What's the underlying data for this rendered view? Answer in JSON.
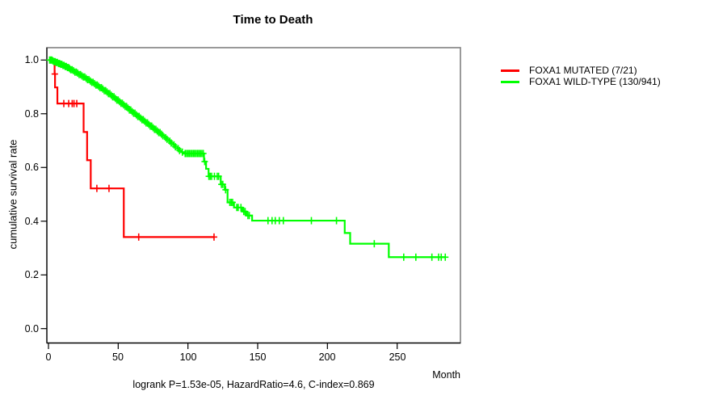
{
  "title": "Time to Death",
  "footer": "logrank P=1.53e-05, HazardRatio=4.6, C-index=0.869",
  "axes": {
    "x": {
      "label": "Month",
      "ticks": [
        "0",
        "50",
        "100",
        "150",
        "200",
        "250"
      ]
    },
    "y": {
      "label": "cumulative survival rate",
      "ticks": [
        "1.0",
        "0.8",
        "0.6",
        "0.4",
        "0.2",
        "0.0"
      ]
    }
  },
  "legend": {
    "items": [
      {
        "label": "FOXA1 MUTATED (7/21)",
        "color": "#ff0000"
      },
      {
        "label": "FOXA1 WILD-TYPE (130/941)",
        "color": "#00ff00"
      }
    ]
  },
  "colors": {
    "box_border": "#808080",
    "axis": "#000000",
    "mutated": "#ff0000",
    "wildtype": "#00ff00"
  },
  "chart_data": {
    "type": "line",
    "subtype": "kaplan-meier-step",
    "title": "Time to Death",
    "xlabel": "Month",
    "ylabel": "cumulative survival rate",
    "xlim": [
      0,
      295
    ],
    "ylim": [
      0.0,
      1.0
    ],
    "x_ticks": [
      0,
      50,
      100,
      150,
      200,
      250
    ],
    "y_ticks": [
      1.0,
      0.8,
      0.6,
      0.4,
      0.2,
      0.0
    ],
    "grid": false,
    "legend_position": "right-outside",
    "series": [
      {
        "name": "FOXA1 MUTATED (7/21)",
        "color": "#ff0000",
        "events": "7/21",
        "steps": [
          [
            0,
            1.0
          ],
          [
            4.4,
            0.948
          ],
          [
            4.7,
            0.898
          ],
          [
            6.4,
            0.838
          ],
          [
            25.2,
            0.732
          ],
          [
            27.7,
            0.627
          ],
          [
            30.3,
            0.522
          ],
          [
            54,
            0.341
          ]
        ],
        "censors": [
          4.55,
          11,
          14.5,
          17,
          18.3,
          20.3,
          34.7,
          43.4,
          64.7,
          118.7
        ],
        "end": 118.7
      },
      {
        "name": "FOXA1 WILD-TYPE (130/941)",
        "color": "#00ff00",
        "events": "130/941",
        "steps": [
          [
            0,
            1.0
          ],
          [
            2.5,
            0.997
          ],
          [
            4,
            0.994
          ],
          [
            5.5,
            0.991
          ],
          [
            7,
            0.987
          ],
          [
            8.5,
            0.984
          ],
          [
            10,
            0.98
          ],
          [
            11.5,
            0.976
          ],
          [
            13,
            0.972
          ],
          [
            14.5,
            0.968
          ],
          [
            16,
            0.964
          ],
          [
            17.5,
            0.96
          ],
          [
            19,
            0.955
          ],
          [
            20.5,
            0.951
          ],
          [
            22,
            0.946
          ],
          [
            23.5,
            0.941
          ],
          [
            25,
            0.937
          ],
          [
            26.5,
            0.932
          ],
          [
            28,
            0.927
          ],
          [
            29.5,
            0.922
          ],
          [
            31,
            0.917
          ],
          [
            32.5,
            0.912
          ],
          [
            34,
            0.907
          ],
          [
            35.5,
            0.902
          ],
          [
            37,
            0.897
          ],
          [
            38.5,
            0.892
          ],
          [
            40,
            0.886
          ],
          [
            41.5,
            0.881
          ],
          [
            43,
            0.875
          ],
          [
            44.5,
            0.869
          ],
          [
            46,
            0.863
          ],
          [
            47.5,
            0.857
          ],
          [
            49,
            0.851
          ],
          [
            50.5,
            0.845
          ],
          [
            52,
            0.839
          ],
          [
            53.5,
            0.833
          ],
          [
            55,
            0.827
          ],
          [
            56.5,
            0.821
          ],
          [
            58,
            0.814
          ],
          [
            59.5,
            0.808
          ],
          [
            61,
            0.802
          ],
          [
            62.5,
            0.796
          ],
          [
            64,
            0.79
          ],
          [
            65.5,
            0.784
          ],
          [
            67,
            0.778
          ],
          [
            68.5,
            0.772
          ],
          [
            70,
            0.766
          ],
          [
            71.5,
            0.76
          ],
          [
            73,
            0.754
          ],
          [
            74.5,
            0.748
          ],
          [
            76,
            0.742
          ],
          [
            77.5,
            0.736
          ],
          [
            79,
            0.73
          ],
          [
            80.5,
            0.724
          ],
          [
            82,
            0.718
          ],
          [
            83.5,
            0.711
          ],
          [
            85,
            0.705
          ],
          [
            86.5,
            0.698
          ],
          [
            88,
            0.691
          ],
          [
            89.5,
            0.684
          ],
          [
            91,
            0.677
          ],
          [
            92.5,
            0.67
          ],
          [
            94,
            0.663
          ],
          [
            95.5,
            0.657
          ],
          [
            97,
            0.652
          ],
          [
            111.5,
            0.622
          ],
          [
            113,
            0.595
          ],
          [
            114.8,
            0.567
          ],
          [
            123.5,
            0.537
          ],
          [
            126.4,
            0.517
          ],
          [
            128.4,
            0.47
          ],
          [
            133,
            0.451
          ],
          [
            139,
            0.436
          ],
          [
            142,
            0.421
          ],
          [
            146,
            0.402
          ],
          [
            212.4,
            0.356
          ],
          [
            216.3,
            0.316
          ],
          [
            244,
            0.266
          ]
        ],
        "censors": [
          0.8,
          1.6,
          2.4,
          3.2,
          4,
          4.8,
          5.6,
          6.4,
          7.2,
          8,
          8.8,
          9.6,
          10.4,
          11.2,
          12,
          12.8,
          13.6,
          14.4,
          15.2,
          16,
          17,
          18,
          19,
          20,
          21,
          22,
          23,
          24,
          25,
          26,
          27,
          28,
          29,
          30,
          31,
          32,
          33,
          34,
          35,
          36,
          37,
          38,
          39,
          40,
          41,
          42,
          43,
          44,
          45,
          46,
          47,
          48,
          49,
          50,
          51,
          52,
          53,
          54,
          55,
          56,
          57,
          58,
          59,
          60,
          61,
          62,
          63,
          64,
          65,
          66,
          67,
          68,
          69,
          70,
          71,
          72,
          73,
          74,
          75,
          76,
          77,
          78,
          79,
          80,
          81,
          82,
          84,
          85,
          87,
          88,
          90,
          91,
          93,
          94,
          96,
          98,
          99,
          100,
          101,
          102,
          103,
          104,
          105,
          106,
          107,
          108,
          109,
          110,
          111,
          112,
          115,
          116,
          117,
          119,
          121,
          122,
          124,
          125,
          127,
          130,
          131,
          132,
          135,
          136,
          138,
          140,
          141,
          143,
          144,
          157.4,
          160.3,
          162.6,
          165.5,
          168.4,
          188.5,
          206.5,
          233.6,
          254.7,
          263.4,
          274.9,
          279.7,
          281.6,
          284.5
        ],
        "end": 284.5
      }
    ]
  }
}
